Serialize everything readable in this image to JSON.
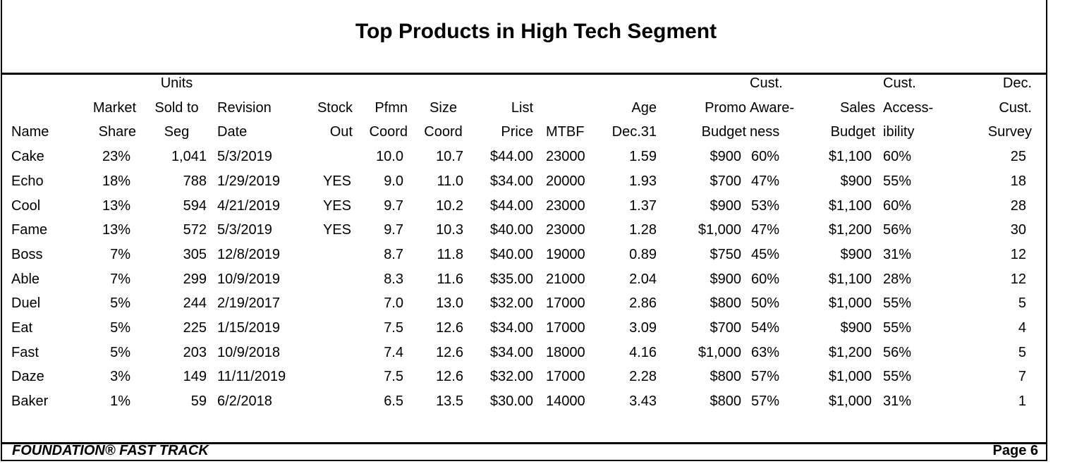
{
  "title": "Top Products in High Tech Segment",
  "header": {
    "row1": [
      "",
      "",
      "Units",
      "",
      "",
      "",
      "",
      "",
      "",
      "",
      "",
      "Cust.",
      "",
      "Cust.",
      "Dec."
    ],
    "row2": [
      "",
      "Market",
      "Sold to",
      "Revision",
      "Stock",
      "Pfmn",
      "Size",
      "List",
      "",
      "Age",
      "Promo",
      "Aware-",
      "Sales",
      "Access-",
      "Cust."
    ],
    "row3": [
      "Name",
      "Share",
      "Seg",
      "Date",
      "Out",
      "Coord",
      "Coord",
      "Price",
      "MTBF",
      "Dec.31",
      "Budget",
      "ness",
      "Budget",
      "ibility",
      "Survey"
    ]
  },
  "rows": [
    [
      "Cake",
      "23%",
      "1,041",
      "5/3/2019",
      "",
      "10.0",
      "10.7",
      "$44.00",
      "23000",
      "1.59",
      "$900",
      "60%",
      "$1,100",
      "60%",
      "25"
    ],
    [
      "Echo",
      "18%",
      "788",
      "1/29/2019",
      "YES",
      "9.0",
      "11.0",
      "$34.00",
      "20000",
      "1.93",
      "$700",
      "47%",
      "$900",
      "55%",
      "18"
    ],
    [
      "Cool",
      "13%",
      "594",
      "4/21/2019",
      "YES",
      "9.7",
      "10.2",
      "$44.00",
      "23000",
      "1.37",
      "$900",
      "53%",
      "$1,100",
      "60%",
      "28"
    ],
    [
      "Fame",
      "13%",
      "572",
      "5/3/2019",
      "YES",
      "9.7",
      "10.3",
      "$40.00",
      "23000",
      "1.28",
      "$1,000",
      "47%",
      "$1,200",
      "56%",
      "30"
    ],
    [
      "Boss",
      "7%",
      "305",
      "12/8/2019",
      "",
      "8.7",
      "11.8",
      "$40.00",
      "19000",
      "0.89",
      "$750",
      "45%",
      "$900",
      "31%",
      "12"
    ],
    [
      "Able",
      "7%",
      "299",
      "10/9/2019",
      "",
      "8.3",
      "11.6",
      "$35.00",
      "21000",
      "2.04",
      "$900",
      "60%",
      "$1,100",
      "28%",
      "12"
    ],
    [
      "Duel",
      "5%",
      "244",
      "2/19/2017",
      "",
      "7.0",
      "13.0",
      "$32.00",
      "17000",
      "2.86",
      "$800",
      "50%",
      "$1,000",
      "55%",
      "5"
    ],
    [
      "Eat",
      "5%",
      "225",
      "1/15/2019",
      "",
      "7.5",
      "12.6",
      "$34.00",
      "17000",
      "3.09",
      "$700",
      "54%",
      "$900",
      "55%",
      "4"
    ],
    [
      "Fast",
      "5%",
      "203",
      "10/9/2018",
      "",
      "7.4",
      "12.6",
      "$34.00",
      "18000",
      "4.16",
      "$1,000",
      "63%",
      "$1,200",
      "56%",
      "5"
    ],
    [
      "Daze",
      "3%",
      "149",
      "11/11/2019",
      "",
      "7.5",
      "12.6",
      "$32.00",
      "17000",
      "2.28",
      "$800",
      "57%",
      "$1,000",
      "55%",
      "7"
    ],
    [
      "Baker",
      "1%",
      "59",
      "6/2/2018",
      "",
      "6.5",
      "13.5",
      "$30.00",
      "14000",
      "3.43",
      "$800",
      "57%",
      "$1,000",
      "31%",
      "1"
    ]
  ],
  "footer": {
    "left": "FOUNDATION® FAST TRACK",
    "right": "Page 6"
  }
}
